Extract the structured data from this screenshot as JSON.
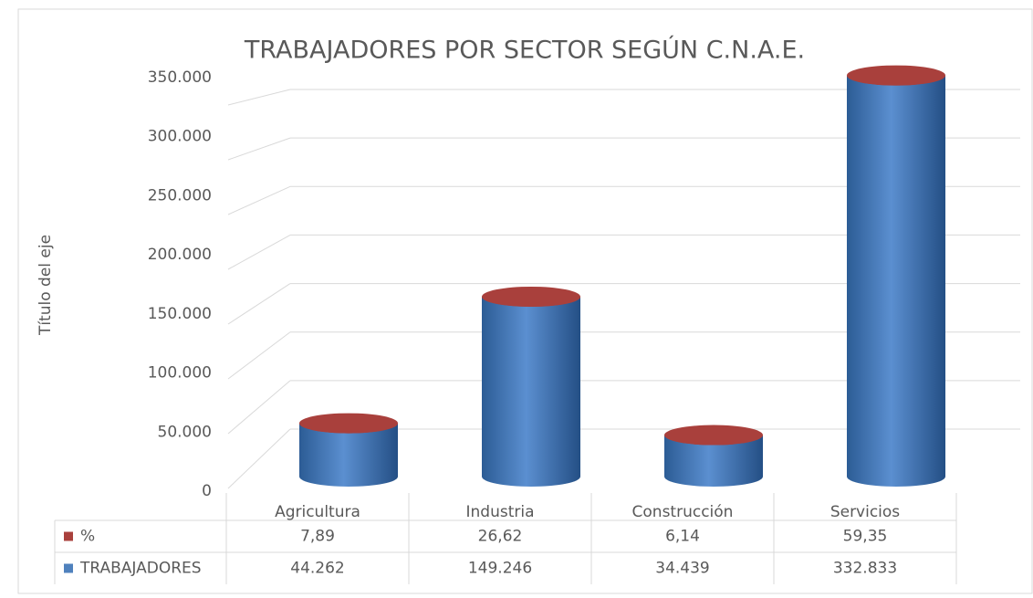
{
  "chart_data": {
    "type": "bar3d_stacked",
    "title": "TRABAJADORES POR SECTOR SEGÚN C.N.A.E.",
    "y_axis_label": "Título del eje",
    "categories": [
      "Agricultura",
      "Industria",
      "Construcción",
      "Servicios"
    ],
    "series": [
      {
        "name": "TRABAJADORES",
        "color": "#4f81bd",
        "values": [
          44262,
          149246,
          34439,
          332833
        ],
        "value_labels": [
          "44.262",
          "149.246",
          "34.439",
          "332.833"
        ]
      },
      {
        "name": "%",
        "color": "#a9403c",
        "values": [
          7.89,
          26.62,
          6.14,
          59.35
        ],
        "value_labels": [
          "7,89",
          "26,62",
          "6,14",
          "59,35"
        ]
      }
    ],
    "ylim": [
      0,
      350000
    ],
    "yticks": [
      0,
      {
        "value": 50000,
        "label": "50.000"
      },
      {
        "value": 100000,
        "label": "100.000"
      },
      {
        "value": 150000,
        "label": "150.000"
      },
      {
        "value": 200000,
        "label": "200.000"
      },
      {
        "value": 250000,
        "label": "250.000"
      },
      {
        "value": 300000,
        "label": "300.000"
      },
      {
        "value": 350000,
        "label": "350.000"
      }
    ],
    "grid": true,
    "data_table": true
  }
}
